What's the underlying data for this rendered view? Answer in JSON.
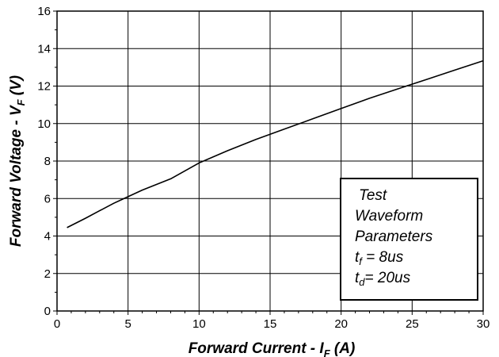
{
  "chart_data": {
    "type": "line",
    "xlabel": {
      "prefix": "Forward Current - I",
      "subscript": "F",
      "suffix": " (A)"
    },
    "ylabel": {
      "prefix": "Forward Voltage - V",
      "subscript": "F",
      "suffix": " (V)"
    },
    "xlim": [
      0,
      30
    ],
    "ylim": [
      0,
      16
    ],
    "x_ticks": [
      0,
      5,
      10,
      15,
      20,
      25,
      30
    ],
    "y_ticks": [
      0,
      2,
      4,
      6,
      8,
      10,
      12,
      14,
      16
    ],
    "grid": true,
    "series": [
      {
        "x": [
          0.7,
          2,
          3,
          4,
          5,
          6,
          8,
          10,
          12,
          14,
          16,
          18,
          20,
          22,
          24,
          25,
          26,
          28,
          30
        ],
        "y": [
          4.45,
          4.95,
          5.35,
          5.75,
          6.1,
          6.45,
          7.05,
          7.9,
          8.55,
          9.15,
          9.7,
          10.25,
          10.8,
          11.35,
          11.85,
          12.1,
          12.35,
          12.85,
          13.35
        ]
      }
    ],
    "annotation": {
      "title": "Test",
      "lines": [
        "Waveform",
        "Parameters"
      ],
      "params": [
        {
          "symbol": "t",
          "subscript": "f",
          "value": " = 8us"
        },
        {
          "symbol": "t",
          "subscript": "d",
          "value": "= 20us"
        }
      ]
    },
    "colors": {
      "line": "#000000",
      "grid": "#000000",
      "background": "#ffffff"
    }
  }
}
